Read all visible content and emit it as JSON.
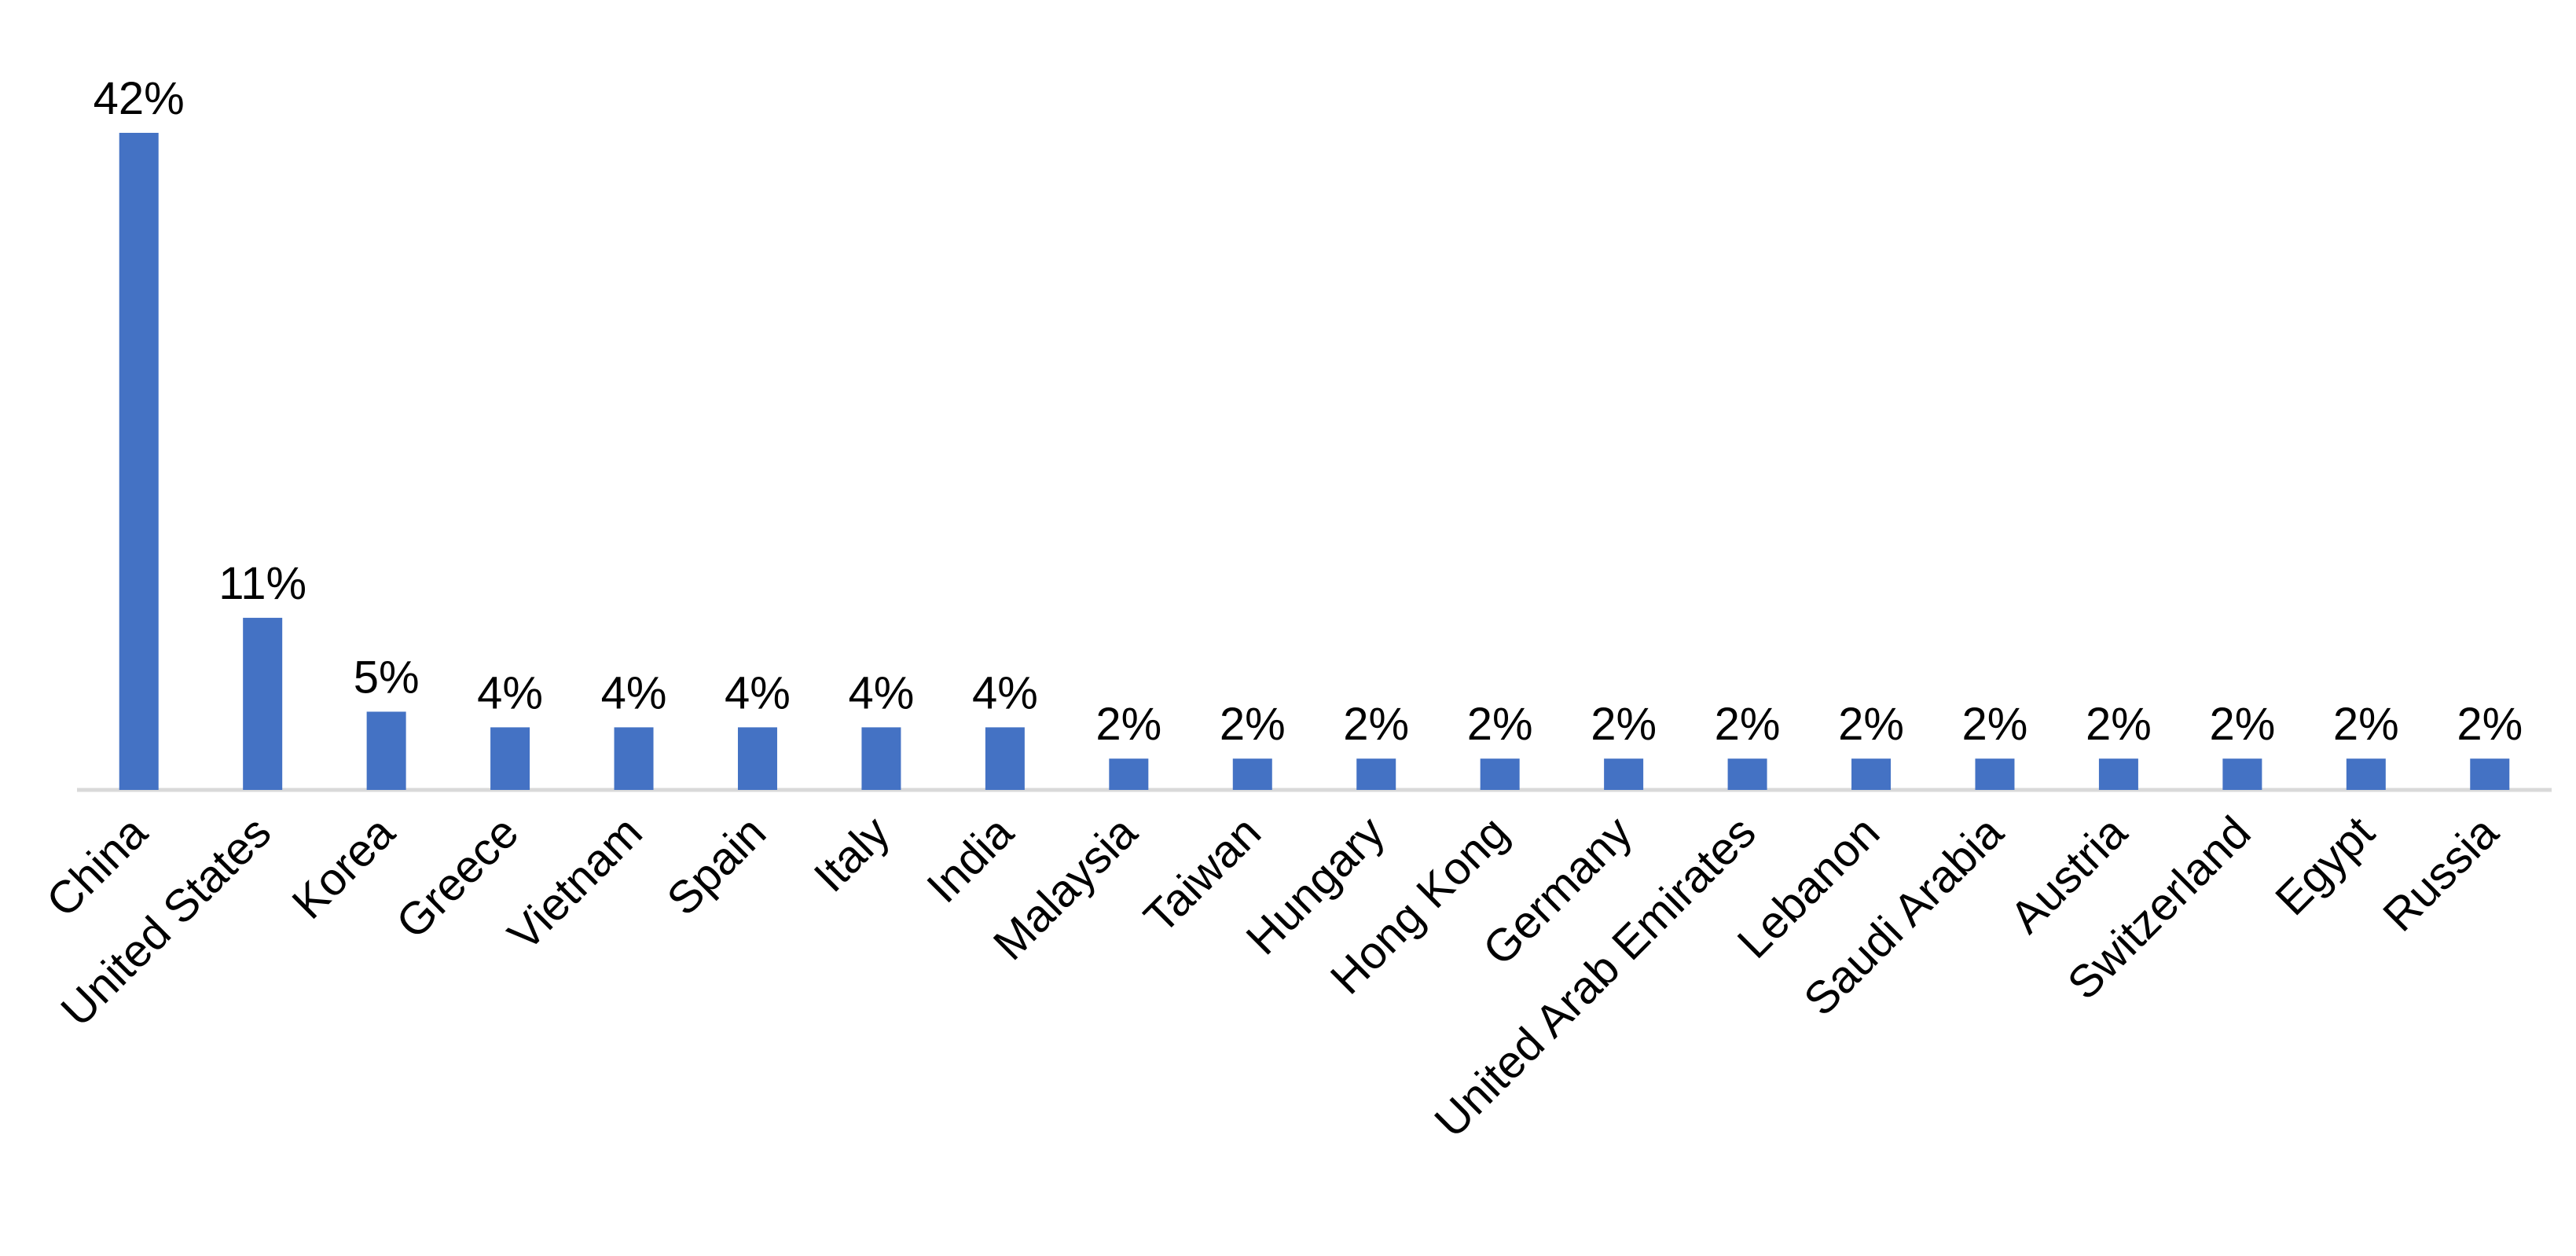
{
  "chart_data": {
    "type": "bar",
    "categories": [
      "China",
      "United States",
      "Korea",
      "Greece",
      "Vietnam",
      "Spain",
      "Italy",
      "India",
      "Malaysia",
      "Taiwan",
      "Hungary",
      "Hong Kong",
      "Germany",
      "United Arab Emirates",
      "Lebanon",
      "Saudi Arabia",
      "Austria",
      "Switzerland",
      "Egypt",
      "Russia"
    ],
    "values": [
      42,
      11,
      5,
      4,
      4,
      4,
      4,
      4,
      2,
      2,
      2,
      2,
      2,
      2,
      2,
      2,
      2,
      2,
      2,
      2
    ],
    "value_labels": [
      "42%",
      "11%",
      "5%",
      "4%",
      "4%",
      "4%",
      "4%",
      "4%",
      "2%",
      "2%",
      "2%",
      "2%",
      "2%",
      "2%",
      "2%",
      "2%",
      "2%",
      "2%",
      "2%",
      "2%"
    ],
    "color": "#4472c4"
  }
}
